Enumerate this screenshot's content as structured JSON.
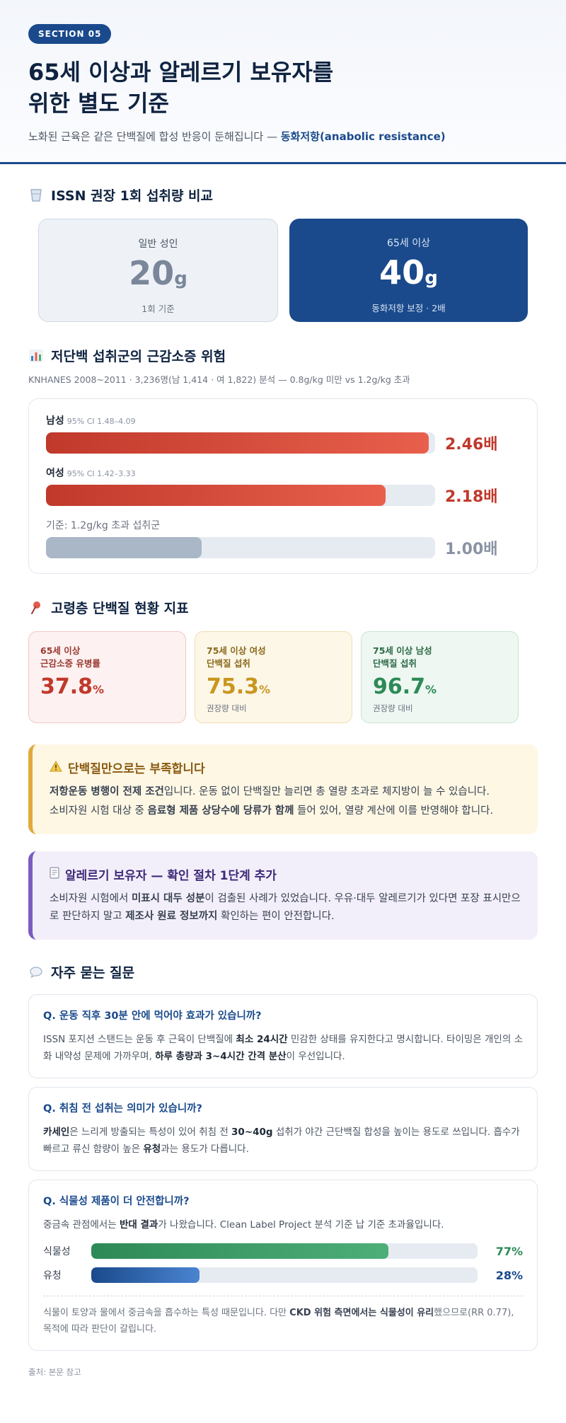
{
  "header": {
    "badge": "SECTION 05",
    "title": "65세 이상과 알레르기 보유자를 위한 별도 기준",
    "subtitle_pre": "노화된 근육은 같은 단백질에 합성 반응이 둔해집니다 — ",
    "subtitle_term": "동화저항(anabolic resistance)"
  },
  "intake": {
    "title": "ISSN 권장 1회 섭취량 비교",
    "icon": "cup-icon",
    "adult": {
      "label": "일반 성인",
      "value": "20",
      "unit": "g",
      "note": "1회 기준"
    },
    "senior": {
      "label": "65세 이상",
      "value": "40",
      "unit": "g",
      "note": "동화저항 보정 · 2배"
    }
  },
  "risk": {
    "title": "저단백 섭취군의 근감소증 위험",
    "icon": "bar-chart-icon",
    "desc": "KNHANES 2008~2011 · 3,236명(남 1,414 · 여 1,822) 분석 — 0.8g/kg 미만 vs 1.2g/kg 초과",
    "rows": [
      {
        "label": "남성",
        "ci": "95% CI 1.48–4.09",
        "value": 2.46,
        "display": "2.46배"
      },
      {
        "label": "여성",
        "ci": "95% CI 1.42–3.33",
        "value": 2.18,
        "display": "2.18배"
      },
      {
        "label": "기준: 1.2g/kg 초과 섭취군",
        "ci": "",
        "value": 1.0,
        "display": "1.00배"
      }
    ],
    "max": 2.5
  },
  "stats": {
    "title": "고령층 단백질 현황 지표",
    "icon": "pin-icon",
    "items": [
      {
        "label1": "65세 이상",
        "label2": "근감소증 유병률",
        "value": "37.8",
        "unit": "%",
        "note": ""
      },
      {
        "label1": "75세 이상 여성",
        "label2": "단백질 섭취",
        "value": "75.3",
        "unit": "%",
        "note": "권장량 대비"
      },
      {
        "label1": "75세 이상 남성",
        "label2": "단백질 섭취",
        "value": "96.7",
        "unit": "%",
        "note": "권장량 대비"
      }
    ]
  },
  "warning": {
    "title": "단백질만으로는 부족합니다",
    "icon": "warning-icon",
    "p1_b": "저항운동 병행이 전제 조건",
    "p1_rest": "입니다. 운동 없이 단백질만 늘리면 총 열량 초과로 체지방이 늘 수 있습니다.",
    "p2_pre": "소비자원 시험 대상 중 ",
    "p2_b": "음료형 제품 상당수에 당류가 함께",
    "p2_rest": " 들어 있어, 열량 계산에 이를 반영해야 합니다."
  },
  "allergy": {
    "title": "알레르기 보유자 — 확인 절차 1단계 추가",
    "icon": "document-icon",
    "p_pre": "소비자원 시험에서 ",
    "p_b1": "미표시 대두 성분",
    "p_mid": "이 검출된 사례가 있었습니다. 우유·대두 알레르기가 있다면 포장 표시만으로 판단하지 말고 ",
    "p_b2": "제조사 원료 정보까지",
    "p_rest": " 확인하는 편이 안전합니다."
  },
  "faq": {
    "title": "자주 묻는 질문",
    "icon": "speech-bubble-icon",
    "q1": {
      "q": "Q. 운동 직후 30분 안에 먹어야 효과가 있습니까?",
      "a_pre": "ISSN 포지션 스탠드는 운동 후 근육이 단백질에 ",
      "a_b1": "최소 24시간",
      "a_mid": " 민감한 상태를 유지한다고 명시합니다. 타이밍은 개인의 소화 내약성 문제에 가까우며, ",
      "a_b2": "하루 총량과 3~4시간 간격 분산",
      "a_rest": "이 우선입니다."
    },
    "q2": {
      "q": "Q. 취침 전 섭취는 의미가 있습니까?",
      "a_b1": "카세인",
      "a_mid1": "은 느리게 방출되는 특성이 있어 취침 전 ",
      "a_b2": "30~40g",
      "a_mid2": " 섭취가 야간 근단백질 합성을 높이는 용도로 쓰입니다. 흡수가 빠르고 류신 함량이 높은 ",
      "a_b3": "유청",
      "a_rest": "과는 용도가 다릅니다."
    },
    "q3": {
      "q": "Q. 식물성 제품이 더 안전합니까?",
      "a_pre": "중금속 관점에서는 ",
      "a_b": "반대 결과",
      "a_rest": "가 나왔습니다. Clean Label Project 분석 기준 납 기준 초과율입니다.",
      "bars": [
        {
          "label": "식물성",
          "value": 77,
          "display": "77%",
          "color": "#2d8a57"
        },
        {
          "label": "유청",
          "value": 28,
          "display": "28%",
          "color": "#1a4a8c"
        }
      ],
      "foot_pre": "식물이 토양과 물에서 중금속을 흡수하는 특성 때문입니다. 다만 ",
      "foot_b": "CKD 위험 측면에서는 식물성이 유리",
      "foot_rest": "했으므로(RR 0.77), 목적에 따라 판단이 갈립니다."
    }
  },
  "source": "출처: 본문 참고"
}
